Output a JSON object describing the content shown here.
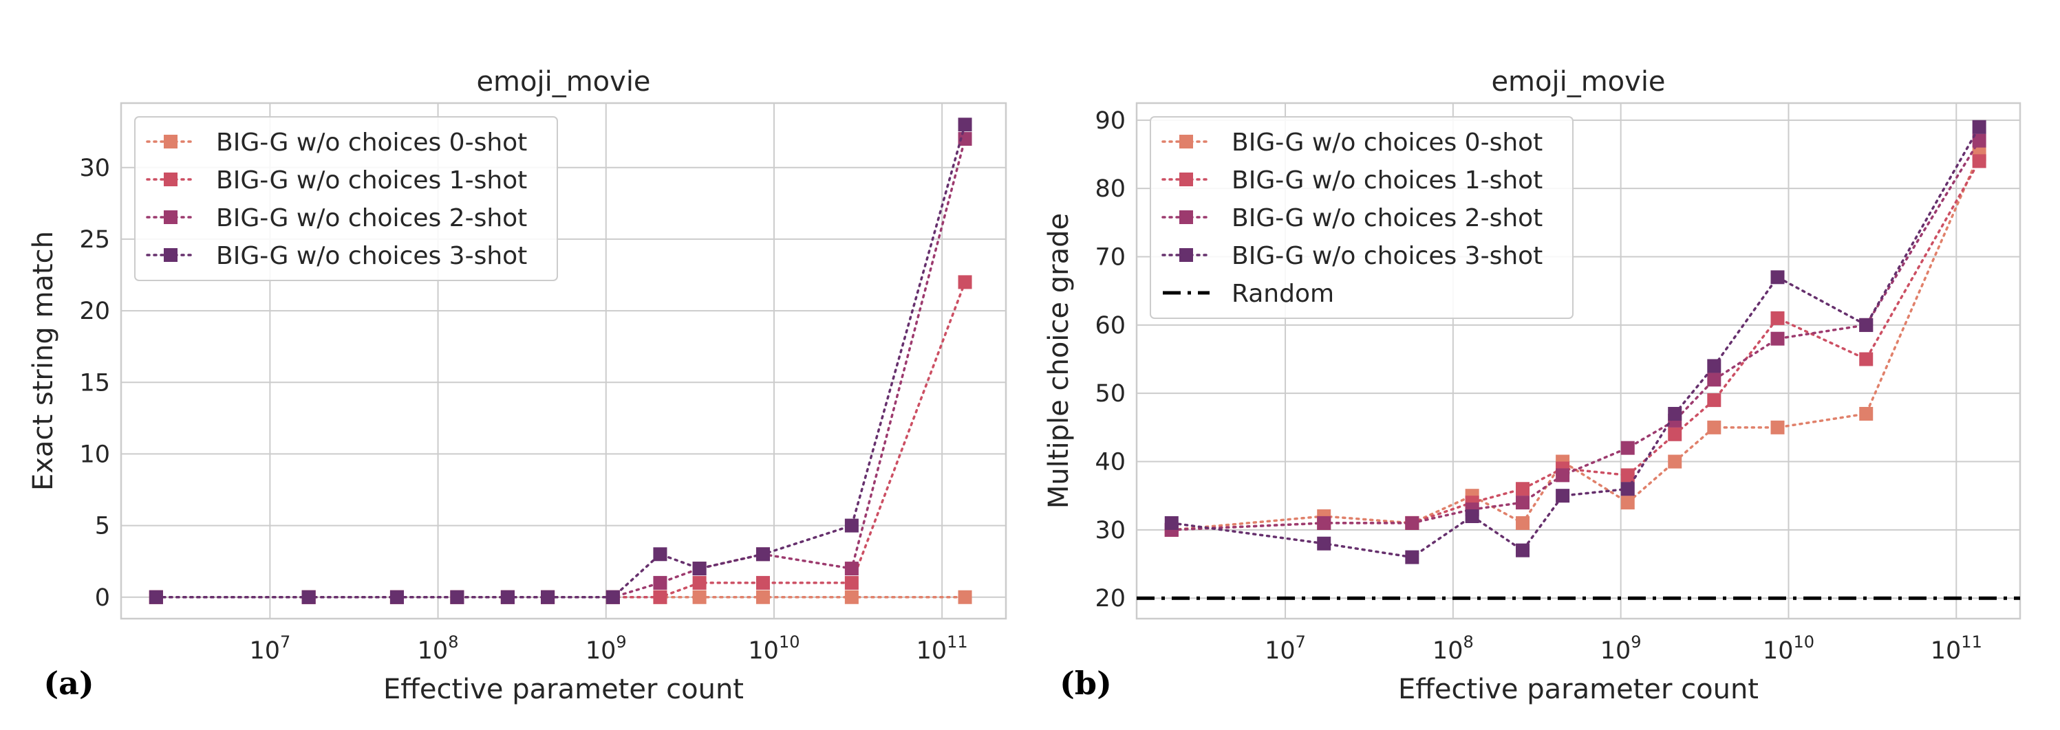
{
  "chart_data": [
    {
      "type": "line",
      "panel_label": "(a)",
      "title": "emoji_movie",
      "xlabel": "Effective parameter count",
      "ylabel": "Exact string match",
      "xscale": "log",
      "xlim": [
        1300000.0,
        240000000000.0
      ],
      "ylim": [
        -1.5,
        34.5
      ],
      "xticks": [
        {
          "value": 10000000.0,
          "base": "10",
          "exp": "7"
        },
        {
          "value": 100000000.0,
          "base": "10",
          "exp": "8"
        },
        {
          "value": 1000000000.0,
          "base": "10",
          "exp": "9"
        },
        {
          "value": 10000000000.0,
          "base": "10",
          "exp": "10"
        },
        {
          "value": 100000000000.0,
          "base": "10",
          "exp": "11"
        }
      ],
      "yticks": [
        "0",
        "5",
        "10",
        "15",
        "20",
        "25",
        "30"
      ],
      "grid": true,
      "legend_position": "top-left",
      "series": [
        {
          "name": "BIG-G w/o choices 0-shot",
          "color": "#e0806a",
          "style": "dotted",
          "marker": "square",
          "x": [
            2100000.0,
            17000000.0,
            57000000.0,
            130000000.0,
            260000000.0,
            450000000.0,
            1100000000.0,
            2100000000.0,
            3600000000.0,
            8600000000.0,
            29000000000.0,
            137000000000.0
          ],
          "y": [
            0,
            0,
            0,
            0,
            0,
            0,
            0,
            0,
            0,
            0,
            0,
            0
          ]
        },
        {
          "name": "BIG-G w/o choices 1-shot",
          "color": "#cc4f63",
          "style": "dotted",
          "marker": "square",
          "x": [
            2100000.0,
            17000000.0,
            57000000.0,
            130000000.0,
            260000000.0,
            450000000.0,
            1100000000.0,
            2100000000.0,
            3600000000.0,
            8600000000.0,
            29000000000.0,
            137000000000.0
          ],
          "y": [
            0,
            0,
            0,
            0,
            0,
            0,
            0,
            0,
            1,
            1,
            1,
            22
          ]
        },
        {
          "name": "BIG-G w/o choices 2-shot",
          "color": "#9c3a6e",
          "style": "dotted",
          "marker": "square",
          "x": [
            2100000.0,
            17000000.0,
            57000000.0,
            130000000.0,
            260000000.0,
            450000000.0,
            1100000000.0,
            2100000000.0,
            3600000000.0,
            8600000000.0,
            29000000000.0,
            137000000000.0
          ],
          "y": [
            0,
            0,
            0,
            0,
            0,
            0,
            0,
            1,
            2,
            3,
            2,
            32
          ]
        },
        {
          "name": "BIG-G w/o choices 3-shot",
          "color": "#66306d",
          "style": "dotted",
          "marker": "square",
          "x": [
            2100000.0,
            17000000.0,
            57000000.0,
            130000000.0,
            260000000.0,
            450000000.0,
            1100000000.0,
            2100000000.0,
            3600000000.0,
            8600000000.0,
            29000000000.0,
            137000000000.0
          ],
          "y": [
            0,
            0,
            0,
            0,
            0,
            0,
            0,
            3,
            2,
            3,
            5,
            33
          ]
        }
      ]
    },
    {
      "type": "line",
      "panel_label": "(b)",
      "title": "emoji_movie",
      "xlabel": "Effective parameter count",
      "ylabel": "Multiple choice grade",
      "xscale": "log",
      "xlim": [
        1300000.0,
        240000000000.0
      ],
      "ylim": [
        17,
        92.5
      ],
      "xticks": [
        {
          "value": 10000000.0,
          "base": "10",
          "exp": "7"
        },
        {
          "value": 100000000.0,
          "base": "10",
          "exp": "8"
        },
        {
          "value": 1000000000.0,
          "base": "10",
          "exp": "9"
        },
        {
          "value": 10000000000.0,
          "base": "10",
          "exp": "10"
        },
        {
          "value": 100000000000.0,
          "base": "10",
          "exp": "11"
        }
      ],
      "yticks": [
        "20",
        "30",
        "40",
        "50",
        "60",
        "70",
        "80",
        "90"
      ],
      "grid": true,
      "legend_position": "top-left",
      "series": [
        {
          "name": "BIG-G w/o choices 0-shot",
          "color": "#e0806a",
          "style": "dotted",
          "marker": "square",
          "x": [
            2100000.0,
            17000000.0,
            57000000.0,
            130000000.0,
            260000000.0,
            450000000.0,
            1100000000.0,
            2100000000.0,
            3600000000.0,
            8600000000.0,
            29000000000.0,
            137000000000.0
          ],
          "y": [
            30,
            32,
            31,
            35,
            31,
            40,
            34,
            40,
            45,
            45,
            47,
            85
          ]
        },
        {
          "name": "BIG-G w/o choices 1-shot",
          "color": "#cc4f63",
          "style": "dotted",
          "marker": "square",
          "x": [
            2100000.0,
            17000000.0,
            57000000.0,
            130000000.0,
            260000000.0,
            450000000.0,
            1100000000.0,
            2100000000.0,
            3600000000.0,
            8600000000.0,
            29000000000.0,
            137000000000.0
          ],
          "y": [
            30,
            31,
            31,
            34,
            36,
            39,
            38,
            44,
            49,
            61,
            55,
            84
          ]
        },
        {
          "name": "BIG-G w/o choices 2-shot",
          "color": "#9c3a6e",
          "style": "dotted",
          "marker": "square",
          "x": [
            2100000.0,
            17000000.0,
            57000000.0,
            130000000.0,
            260000000.0,
            450000000.0,
            1100000000.0,
            2100000000.0,
            3600000000.0,
            8600000000.0,
            29000000000.0,
            137000000000.0
          ],
          "y": [
            30,
            31,
            31,
            33,
            34,
            38,
            42,
            46,
            52,
            58,
            60,
            87
          ]
        },
        {
          "name": "BIG-G w/o choices 3-shot",
          "color": "#66306d",
          "style": "dotted",
          "marker": "square",
          "x": [
            2100000.0,
            17000000.0,
            57000000.0,
            130000000.0,
            260000000.0,
            450000000.0,
            1100000000.0,
            2100000000.0,
            3600000000.0,
            8600000000.0,
            29000000000.0,
            137000000000.0
          ],
          "y": [
            31,
            28,
            26,
            32,
            27,
            35,
            36,
            47,
            54,
            67,
            60,
            89
          ]
        },
        {
          "name": "Random",
          "color": "#000000",
          "style": "dashdot",
          "marker": "none",
          "x": [
            1300000.0,
            240000000000.0
          ],
          "y": [
            20,
            20
          ]
        }
      ]
    }
  ]
}
